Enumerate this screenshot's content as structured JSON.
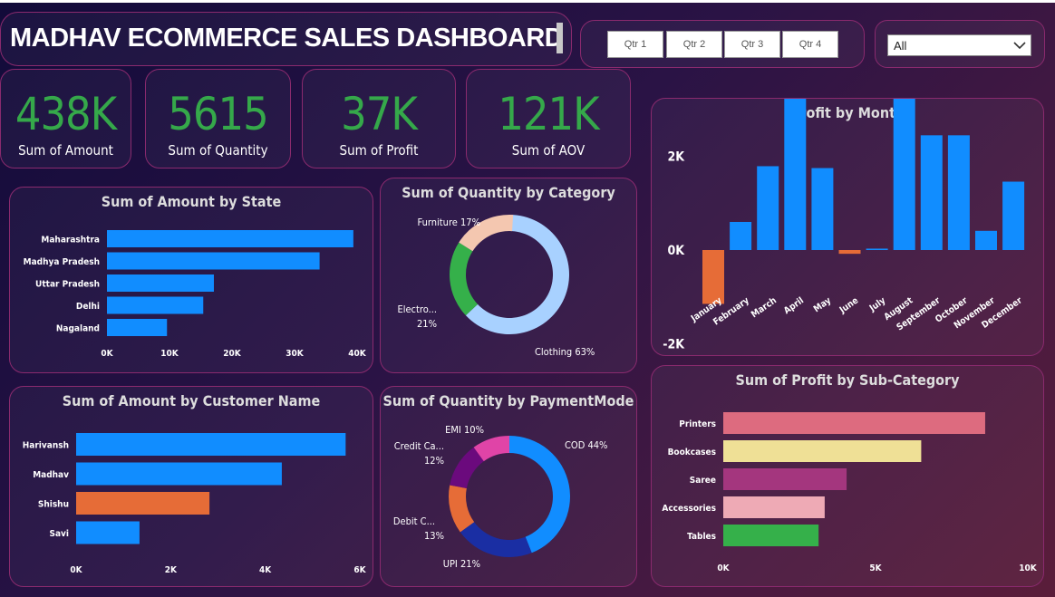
{
  "header": {
    "title": "MADHAV ECOMMERCE SALES DASHBOARD"
  },
  "filters": {
    "quarters": [
      "Qtr 1",
      "Qtr 2",
      "Qtr 3",
      "Qtr 4"
    ],
    "dropdown_value": "All"
  },
  "kpis": [
    {
      "value": "438K",
      "label": "Sum of Amount"
    },
    {
      "value": "5615",
      "label": "Sum of Quantity"
    },
    {
      "value": "37K",
      "label": "Sum of Profit"
    },
    {
      "value": "121K",
      "label": "Sum of AOV"
    }
  ],
  "colors": {
    "blue": "#118dff",
    "orange": "#e66c37",
    "kpi_green": "#35a84a",
    "border": "#8a2a6e"
  },
  "chart_data": [
    {
      "id": "state",
      "type": "bar",
      "orientation": "horizontal",
      "title": "Sum of Amount by State",
      "categories": [
        "Maharashtra",
        "Madhya Pradesh",
        "Uttar Pradesh",
        "Delhi",
        "Nagaland"
      ],
      "values": [
        39400,
        34000,
        17100,
        15400,
        9600
      ],
      "xlim": [
        0,
        40000
      ],
      "ticks": [
        "0K",
        "10K",
        "20K",
        "30K",
        "40K"
      ],
      "colors": [
        "#118dff",
        "#118dff",
        "#118dff",
        "#118dff",
        "#118dff"
      ]
    },
    {
      "id": "customer",
      "type": "bar",
      "orientation": "horizontal",
      "title": "Sum of Amount by Customer Name",
      "categories": [
        "Harivansh",
        "Madhav",
        "Shishu",
        "Savi"
      ],
      "values": [
        5700,
        4350,
        2820,
        1340
      ],
      "xlim": [
        0,
        6000
      ],
      "ticks": [
        "0K",
        "2K",
        "4K",
        "6K"
      ],
      "colors": [
        "#118dff",
        "#118dff",
        "#e66c37",
        "#118dff"
      ]
    },
    {
      "id": "subcat",
      "type": "bar",
      "orientation": "horizontal",
      "title": "Sum of Profit by Sub-Category",
      "categories": [
        "Printers",
        "Bookcases",
        "Saree",
        "Accessories",
        "Tables"
      ],
      "values": [
        8600,
        6500,
        4050,
        3330,
        3130
      ],
      "xlim": [
        0,
        10000
      ],
      "ticks": [
        "0K",
        "5K",
        "10K"
      ],
      "colors": [
        "#dd6b7f",
        "#efe096",
        "#a4367e",
        "#eeaab5",
        "#35b04a"
      ]
    },
    {
      "id": "month",
      "type": "bar",
      "orientation": "vertical",
      "title": "Profit by Month",
      "categories": [
        "January",
        "February",
        "March",
        "April",
        "May",
        "June",
        "July",
        "August",
        "September",
        "October",
        "November",
        "December"
      ],
      "values": [
        -1150,
        600,
        1790,
        3230,
        1750,
        -80,
        30,
        4390,
        2450,
        2450,
        410,
        1460
      ],
      "ylim": [
        -2000,
        4400
      ],
      "ticks": [
        "-2K",
        "0K",
        "2K",
        "4K"
      ],
      "positive_color": "#118dff",
      "negative_color": "#e66c37"
    },
    {
      "id": "category",
      "type": "pie",
      "donut": true,
      "title": "Sum of Quantity by Category",
      "slices": [
        {
          "label": "Clothing",
          "pct": 63,
          "text": "Clothing 63%",
          "color": "#a8d1ff"
        },
        {
          "label": "Electronics",
          "pct": 21,
          "text": "Electro...",
          "text2": "21%",
          "color": "#35b04a"
        },
        {
          "label": "Furniture",
          "pct": 17,
          "text": "Furniture 17%",
          "color": "#f4c7b0"
        }
      ]
    },
    {
      "id": "payment",
      "type": "pie",
      "donut": true,
      "title": "Sum of Quantity by PaymentMode",
      "slices": [
        {
          "label": "COD",
          "pct": 44,
          "text": "COD 44%",
          "color": "#118dff"
        },
        {
          "label": "UPI",
          "pct": 21,
          "text": "UPI 21%",
          "color": "#1a2ea3"
        },
        {
          "label": "Debit Card",
          "pct": 13,
          "text": "Debit C...",
          "text2": "13%",
          "color": "#e66c37"
        },
        {
          "label": "Credit Card",
          "pct": 12,
          "text": "Credit Ca...",
          "text2": "12%",
          "color": "#6b0a7d"
        },
        {
          "label": "EMI",
          "pct": 10,
          "text": "EMI 10%",
          "color": "#e044a7"
        }
      ]
    }
  ]
}
